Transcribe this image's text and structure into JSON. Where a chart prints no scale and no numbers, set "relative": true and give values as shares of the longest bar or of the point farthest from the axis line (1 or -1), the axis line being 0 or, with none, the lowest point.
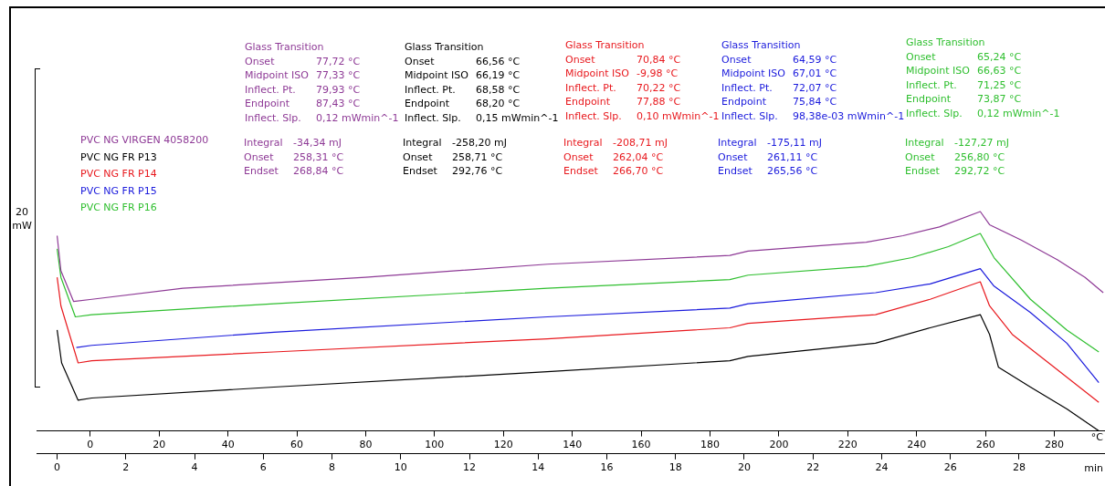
{
  "chart_data": {
    "type": "line",
    "relative": true,
    "xlabel": "min",
    "x2label": "°C",
    "ylabel": "20 mW",
    "legend": "top left",
    "marker": "none",
    "line_style": "solid",
    "grid": false,
    "xlim": [
      -0.6,
      30.5
    ],
    "xticks": [
      0,
      2,
      4,
      6,
      8,
      10,
      12,
      14,
      16,
      18,
      20,
      22,
      24,
      26,
      28
    ],
    "x2lim": [
      -15.6,
      294.7
    ],
    "x2ticks": [
      0,
      20,
      40,
      60,
      80,
      100,
      120,
      140,
      160,
      180,
      200,
      220,
      240,
      260,
      280
    ],
    "series": [
      {
        "name": "PVC NG VIRGEN 4058200",
        "color": "#8e3a96",
        "x": [
          0,
          0.11,
          0.48,
          1.01,
          3.66,
          8.97,
          14.27,
          19.58,
          20.11,
          23.55,
          24.62,
          25.68,
          26.87,
          27.14,
          28.06,
          29.12,
          29.92,
          30.45
        ],
        "values": [
          0.89,
          0.73,
          0.59,
          0.6,
          0.65,
          0.7,
          0.76,
          0.8,
          0.82,
          0.86,
          0.89,
          0.93,
          1,
          0.94,
          0.87,
          0.78,
          0.7,
          0.63
        ]
      },
      {
        "name": "PVC NG FR P13",
        "color": "#000000",
        "x": [
          0,
          0.13,
          0.61,
          1.01,
          6.31,
          14.27,
          19.58,
          20.11,
          23.82,
          25.41,
          26.87,
          27.14,
          27.4,
          28.33,
          29.39,
          30.32
        ],
        "values": [
          0.46,
          0.31,
          0.14,
          0.15,
          0.2,
          0.27,
          0.32,
          0.34,
          0.4,
          0.47,
          0.53,
          0.44,
          0.29,
          0.2,
          0.1,
          0
        ]
      },
      {
        "name": "PVC NG FR P14",
        "color": "#e8191e",
        "x": [
          0,
          0.11,
          0.61,
          1.01,
          6.31,
          14.27,
          19.58,
          20.11,
          23.82,
          25.41,
          26.87,
          27.14,
          27.8,
          28.86,
          30.32
        ],
        "values": [
          0.7,
          0.57,
          0.31,
          0.32,
          0.36,
          0.42,
          0.47,
          0.49,
          0.53,
          0.6,
          0.68,
          0.57,
          0.44,
          0.31,
          0.13
        ]
      },
      {
        "name": "PVC NG FR P15",
        "color": "#1a1adc",
        "x": [
          0.56,
          1.01,
          6.31,
          14.27,
          19.58,
          20.11,
          23.82,
          25.41,
          26.87,
          27.27,
          28.33,
          29.39,
          30.32
        ],
        "values": [
          0.38,
          0.39,
          0.45,
          0.52,
          0.56,
          0.58,
          0.63,
          0.67,
          0.74,
          0.66,
          0.54,
          0.4,
          0.22
        ]
      },
      {
        "name": "PVC NG FR P16",
        "color": "#2fbf2f",
        "x": [
          0,
          0.11,
          0.53,
          1.01,
          6.31,
          14.27,
          19.58,
          20.11,
          23.55,
          24.88,
          25.94,
          26.87,
          27.27,
          28.33,
          29.39,
          30.32
        ],
        "values": [
          0.83,
          0.7,
          0.52,
          0.53,
          0.58,
          0.65,
          0.69,
          0.71,
          0.75,
          0.79,
          0.84,
          0.9,
          0.79,
          0.6,
          0.46,
          0.36
        ]
      }
    ],
    "annotations": [
      "Glass Transition\nOnset\t77,72 °C\nMidpoint ISO\t77,33 °C\nInflect. Pt.\t79,93 °C\nEndpoint\t87,43 °C\nInflect. Slp.\t0,12 mWmin^-1",
      "Glass Transition\nOnset\t66,56 °C\nMidpoint ISO\t66,19 °C\nInflect. Pt.\t68,58 °C\nEndpoint\t68,20 °C\nInflect. Slp.\t0,15 mWmin^-1",
      "Glass Transition\nOnset\t70,84 °C\nMidpoint ISO\t-9,98 °C\nInflect. Pt.\t70,22 °C\nEndpoint\t77,88 °C\nInflect. Slp.\t0,10 mWmin^-1",
      "Glass Transition\nOnset\t64,59 °C\nMidpoint ISO\t67,01 °C\nInflect. Pt.\t72,07 °C\nEndpoint\t75,84 °C\nInflect. Slp.\t98,38e-03 mWmin^-1",
      "Glass Transition\nOnset\t65,24 °C\nMidpoint ISO\t66,63 °C\nInflect. Pt.\t71,25 °C\nEndpoint\t73,87 °C\nInflect. Slp.\t0,12 mWmin^-1",
      "Integral\t-34,34 mJ\nOnset\t258,31 °C\nEndset\t268,84 °C",
      "Integral\t-258,20 mJ\nOnset\t258,71 °C\nEndset\t292,76 °C",
      "Integral\t-208,71 mJ\nOnset\t262,04 °C\nEndset\t266,70 °C",
      "Integral\t-175,11 mJ\nOnset\t261,11 °C\nEndset\t265,56 °C",
      "Integral\t-127,27 mJ\nOnset\t256,80 °C\nEndset\t292,72 °C"
    ]
  }
}
